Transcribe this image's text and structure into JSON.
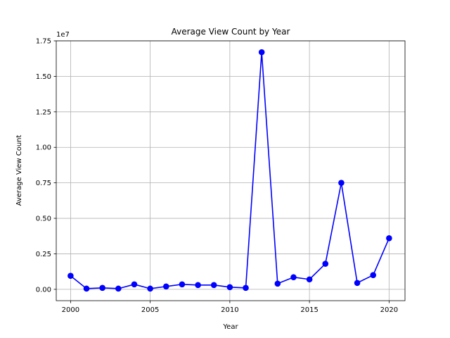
{
  "chart_data": {
    "type": "line",
    "title": "Average View Count by Year",
    "xlabel": "Year",
    "ylabel": "Average View Count",
    "offset_text": "1e7",
    "x_ticks": [
      2000,
      2005,
      2010,
      2015,
      2020
    ],
    "x_tick_labels": [
      "2000",
      "2005",
      "2010",
      "2015",
      "2020"
    ],
    "y_ticks": [
      0,
      2500000,
      5000000,
      7500000,
      10000000,
      12500000,
      15000000,
      17500000
    ],
    "y_tick_labels": [
      "0.00",
      "0.25",
      "0.50",
      "0.75",
      "1.00",
      "1.25",
      "1.50",
      "1.75"
    ],
    "xlim": [
      1999.1,
      2021
    ],
    "ylim": [
      -800000,
      17500000
    ],
    "grid": true,
    "color": "#0000ff",
    "series": [
      {
        "x": [
          2000,
          2001,
          2002,
          2003,
          2004,
          2005,
          2006,
          2007,
          2008,
          2009,
          2010,
          2011,
          2012,
          2013,
          2014,
          2015,
          2016,
          2017,
          2018,
          2019,
          2020
        ],
        "values": [
          950000,
          50000,
          100000,
          50000,
          350000,
          50000,
          200000,
          350000,
          300000,
          300000,
          150000,
          100000,
          16700000,
          400000,
          850000,
          700000,
          1800000,
          7500000,
          450000,
          1000000,
          3600000
        ]
      }
    ]
  }
}
